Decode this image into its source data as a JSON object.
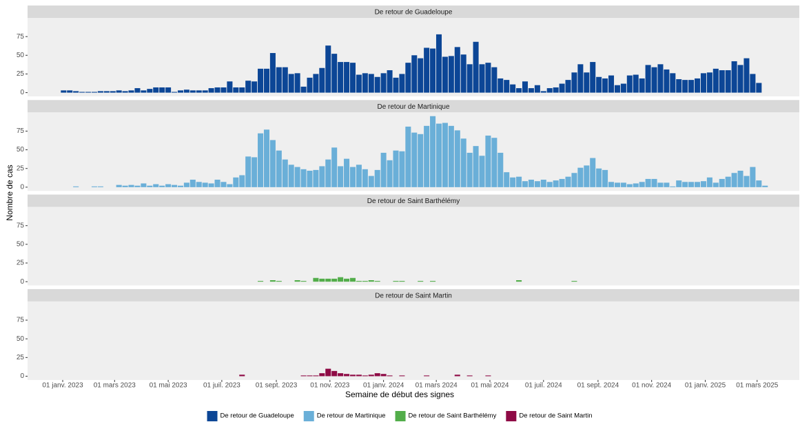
{
  "chart_data": {
    "type": "bar",
    "x_label": "Semaine de début des signes",
    "y_label": "Nombre de cas",
    "x": [
      "2023-01-02",
      "2023-01-09",
      "2023-01-16",
      "2023-01-23",
      "2023-01-30",
      "2023-02-06",
      "2023-02-13",
      "2023-02-20",
      "2023-02-27",
      "2023-03-06",
      "2023-03-13",
      "2023-03-20",
      "2023-03-27",
      "2023-04-03",
      "2023-04-10",
      "2023-04-17",
      "2023-04-24",
      "2023-05-01",
      "2023-05-08",
      "2023-05-15",
      "2023-05-22",
      "2023-05-29",
      "2023-06-05",
      "2023-06-12",
      "2023-06-19",
      "2023-06-26",
      "2023-07-03",
      "2023-07-10",
      "2023-07-17",
      "2023-07-24",
      "2023-07-31",
      "2023-08-07",
      "2023-08-14",
      "2023-08-21",
      "2023-08-28",
      "2023-09-04",
      "2023-09-11",
      "2023-09-18",
      "2023-09-25",
      "2023-10-02",
      "2023-10-09",
      "2023-10-16",
      "2023-10-23",
      "2023-10-30",
      "2023-11-06",
      "2023-11-13",
      "2023-11-20",
      "2023-11-27",
      "2023-12-04",
      "2023-12-11",
      "2023-12-18",
      "2023-12-25",
      "2024-01-01",
      "2024-01-08",
      "2024-01-15",
      "2024-01-22",
      "2024-01-29",
      "2024-02-05",
      "2024-02-12",
      "2024-02-19",
      "2024-02-26",
      "2024-03-04",
      "2024-03-11",
      "2024-03-18",
      "2024-03-25",
      "2024-04-01",
      "2024-04-08",
      "2024-04-15",
      "2024-04-22",
      "2024-04-29",
      "2024-05-06",
      "2024-05-13",
      "2024-05-20",
      "2024-05-27",
      "2024-06-03",
      "2024-06-10",
      "2024-06-17",
      "2024-06-24",
      "2024-07-01",
      "2024-07-08",
      "2024-07-15",
      "2024-07-22",
      "2024-07-29",
      "2024-08-05",
      "2024-08-12",
      "2024-08-19",
      "2024-08-26",
      "2024-09-02",
      "2024-09-09",
      "2024-09-16",
      "2024-09-23",
      "2024-09-30",
      "2024-10-07",
      "2024-10-14",
      "2024-10-21",
      "2024-10-28",
      "2024-11-04",
      "2024-11-11",
      "2024-11-18",
      "2024-11-25",
      "2024-12-02",
      "2024-12-09",
      "2024-12-16",
      "2024-12-23",
      "2024-12-30",
      "2025-01-06",
      "2025-01-13",
      "2025-01-20",
      "2025-01-27",
      "2025-02-03",
      "2025-02-10",
      "2025-02-17",
      "2025-02-24",
      "2025-03-03",
      "2025-03-10"
    ],
    "xlim": [
      "2022-11-22",
      "2025-04-18"
    ],
    "xticks": [
      {
        "value": "2023-01-01",
        "label": "01 janv. 2023"
      },
      {
        "value": "2023-03-01",
        "label": "01 mars 2023"
      },
      {
        "value": "2023-05-01",
        "label": "01 mai 2023"
      },
      {
        "value": "2023-07-01",
        "label": "01 juil. 2023"
      },
      {
        "value": "2023-09-01",
        "label": "01 sept. 2023"
      },
      {
        "value": "2023-11-01",
        "label": "01 nov. 2023"
      },
      {
        "value": "2024-01-01",
        "label": "01 janv. 2024"
      },
      {
        "value": "2024-03-01",
        "label": "01 mars 2024"
      },
      {
        "value": "2024-05-01",
        "label": "01 mai 2024"
      },
      {
        "value": "2024-07-01",
        "label": "01 juil. 2024"
      },
      {
        "value": "2024-09-01",
        "label": "01 sept. 2024"
      },
      {
        "value": "2024-11-01",
        "label": "01 nov. 2024"
      },
      {
        "value": "2025-01-01",
        "label": "01 janv. 2025"
      },
      {
        "value": "2025-03-01",
        "label": "01 mars 2025"
      }
    ],
    "ylim": [
      -5,
      100
    ],
    "yticks": [
      0,
      25,
      50,
      75
    ],
    "grid": false,
    "legend": "bottom",
    "series": [
      {
        "name": "De retour de Guadeloupe",
        "color": "#0c4696",
        "values": [
          3,
          3,
          2,
          1,
          1,
          1,
          2,
          2,
          2,
          3,
          2,
          3,
          6,
          3,
          5,
          7,
          7,
          7,
          1,
          3,
          4,
          3,
          3,
          3,
          6,
          7,
          7,
          15,
          7,
          7,
          16,
          15,
          32,
          32,
          53,
          34,
          34,
          25,
          26,
          8,
          20,
          25,
          33,
          63,
          52,
          41,
          41,
          40,
          24,
          26,
          25,
          21,
          26,
          30,
          20,
          25,
          40,
          50,
          46,
          60,
          59,
          78,
          48,
          49,
          61,
          51,
          38,
          68,
          38,
          40,
          34,
          19,
          17,
          11,
          6,
          15,
          6,
          10,
          2,
          6,
          7,
          12,
          17,
          27,
          38,
          27,
          41,
          21,
          19,
          23,
          10,
          12,
          23,
          24,
          19,
          37,
          34,
          38,
          31,
          26,
          18,
          17,
          17,
          19,
          26,
          27,
          32,
          30,
          30,
          42,
          37,
          46,
          25,
          13,
          0
        ]
      },
      {
        "name": "De retour de Martinique",
        "color": "#6aafd8",
        "values": [
          0,
          0,
          1,
          0,
          0,
          1,
          1,
          0,
          0,
          3,
          2,
          3,
          2,
          5,
          2,
          4,
          2,
          4,
          3,
          2,
          6,
          10,
          7,
          6,
          5,
          10,
          7,
          4,
          13,
          16,
          41,
          40,
          72,
          77,
          63,
          49,
          37,
          30,
          27,
          24,
          22,
          23,
          28,
          37,
          53,
          28,
          38,
          27,
          30,
          24,
          15,
          23,
          46,
          36,
          49,
          48,
          81,
          73,
          71,
          82,
          95,
          85,
          86,
          82,
          76,
          65,
          46,
          55,
          42,
          69,
          66,
          46,
          20,
          13,
          14,
          8,
          10,
          8,
          10,
          7,
          9,
          11,
          14,
          19,
          26,
          29,
          39,
          25,
          23,
          7,
          6,
          6,
          4,
          5,
          7,
          11,
          11,
          6,
          6,
          1,
          9,
          7,
          7,
          7,
          8,
          13,
          6,
          11,
          14,
          19,
          22,
          15,
          27,
          9,
          2
        ]
      },
      {
        "name": "De retour de Saint Barthélémy",
        "color": "#52ad4a",
        "values": [
          0,
          0,
          0,
          0,
          0,
          0,
          0,
          0,
          0,
          0,
          0,
          0,
          0,
          0,
          0,
          0,
          0,
          0,
          0,
          0,
          0,
          0,
          0,
          0,
          0,
          0,
          0,
          0,
          0,
          0,
          0,
          0,
          1,
          0,
          2,
          1,
          0,
          0,
          2,
          1,
          0,
          5,
          4,
          4,
          4,
          6,
          4,
          5,
          1,
          1,
          2,
          1,
          0,
          0,
          1,
          1,
          0,
          0,
          1,
          0,
          1,
          0,
          0,
          0,
          0,
          0,
          0,
          0,
          0,
          0,
          0,
          0,
          0,
          0,
          2,
          0,
          0,
          0,
          0,
          0,
          0,
          0,
          0,
          1,
          0,
          0,
          0,
          0,
          0,
          0,
          0,
          0,
          0,
          0,
          0,
          0,
          0,
          0,
          0,
          0,
          0,
          0,
          0,
          0,
          0,
          0,
          0,
          0,
          0,
          0,
          0,
          0,
          0,
          0,
          0
        ]
      },
      {
        "name": "De retour de Saint Martin",
        "color": "#8e0a45",
        "values": [
          0,
          0,
          0,
          0,
          0,
          0,
          0,
          0,
          0,
          0,
          0,
          0,
          0,
          0,
          0,
          0,
          0,
          0,
          0,
          0,
          0,
          0,
          0,
          0,
          0,
          0,
          0,
          0,
          0,
          2,
          0,
          0,
          0,
          0,
          0,
          0,
          0,
          0,
          0,
          1,
          1,
          1,
          4,
          10,
          7,
          4,
          3,
          2,
          2,
          1,
          2,
          4,
          3,
          1,
          0,
          1,
          0,
          0,
          0,
          1,
          0,
          0,
          0,
          0,
          2,
          0,
          1,
          0,
          0,
          1,
          0,
          0,
          0,
          0,
          0,
          0,
          0,
          0,
          0,
          0,
          0,
          0,
          0,
          0,
          0,
          0,
          0,
          0,
          0,
          0,
          0,
          0,
          0,
          0,
          0,
          0,
          0,
          0,
          0,
          0,
          0,
          0,
          0,
          0,
          0,
          0,
          0,
          0,
          0,
          0,
          0,
          0,
          0,
          0,
          0
        ]
      }
    ]
  }
}
